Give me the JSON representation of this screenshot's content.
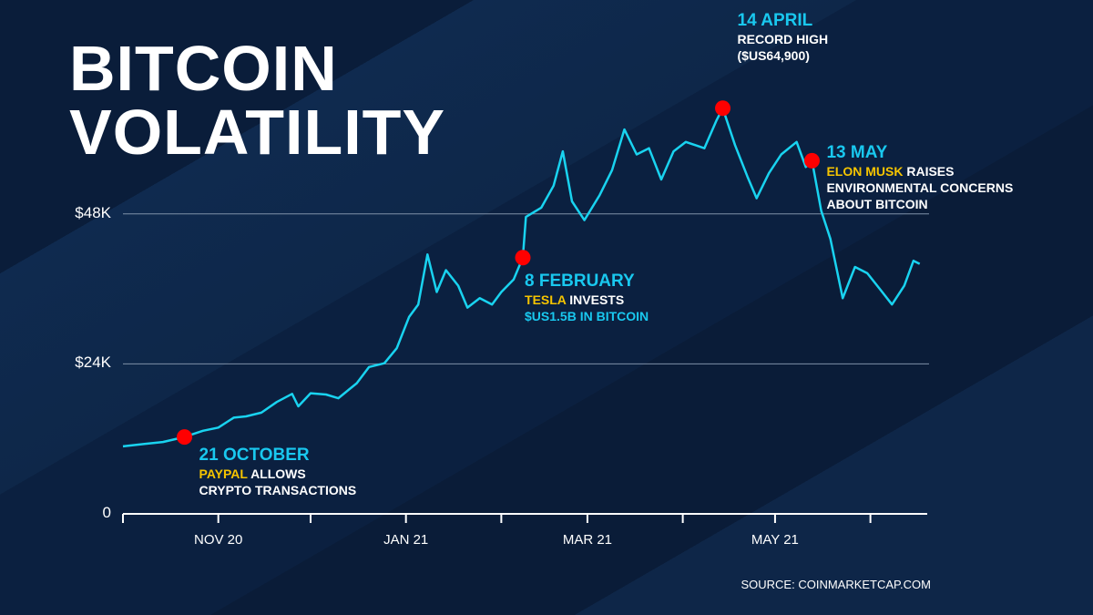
{
  "title": [
    "BITCOIN",
    "VOLATILITY"
  ],
  "source": "SOURCE: COINMARKETCAP.COM",
  "colors": {
    "background": "#0c2140",
    "line": "#19d3f0",
    "event_marker": "#ff0000",
    "highlight": "#f5c400",
    "date_text": "#19c8ef"
  },
  "chart_data": {
    "type": "line",
    "title": "BITCOIN VOLATILITY",
    "xlabel": "",
    "ylabel": "",
    "x_range": [
      "2020-10-01",
      "2021-06-20"
    ],
    "ylim": [
      0,
      66000
    ],
    "y_ticks": [
      {
        "value": 0,
        "label": "0"
      },
      {
        "value": 24000,
        "label": "$24K"
      },
      {
        "value": 48000,
        "label": "$48K"
      }
    ],
    "x_ticks": [
      "2020-10-01",
      "2020-11-01",
      "2020-12-01",
      "2021-01-01",
      "2021-02-01",
      "2021-03-01",
      "2021-04-01",
      "2021-05-01",
      "2021-06-01"
    ],
    "x_tick_labels": [
      {
        "date": "2020-11-01",
        "label": "NOV 20"
      },
      {
        "date": "2021-01-01",
        "label": "JAN 21"
      },
      {
        "date": "2021-03-01",
        "label": "MAR 21"
      },
      {
        "date": "2021-05-01",
        "label": "MAY 21"
      }
    ],
    "grid": "horizontal at $24K and $48K",
    "series": [
      {
        "x": [
          "2020-10-01",
          "2020-10-08",
          "2020-10-14",
          "2020-10-21",
          "2020-10-27",
          "2020-11-01",
          "2020-11-06",
          "2020-11-10",
          "2020-11-15",
          "2020-11-20",
          "2020-11-25",
          "2020-11-27",
          "2020-12-01",
          "2020-12-06",
          "2020-12-10",
          "2020-12-16",
          "2020-12-20",
          "2020-12-25",
          "2020-12-29",
          "2021-01-02",
          "2021-01-05",
          "2021-01-08",
          "2021-01-11",
          "2021-01-14",
          "2021-01-18",
          "2021-01-21",
          "2021-01-25",
          "2021-01-29",
          "2021-02-01",
          "2021-02-05",
          "2021-02-08",
          "2021-02-09",
          "2021-02-14",
          "2021-02-18",
          "2021-02-21",
          "2021-02-24",
          "2021-02-28",
          "2021-03-05",
          "2021-03-09",
          "2021-03-13",
          "2021-03-17",
          "2021-03-21",
          "2021-03-25",
          "2021-03-29",
          "2021-04-02",
          "2021-04-08",
          "2021-04-12",
          "2021-04-14",
          "2021-04-18",
          "2021-04-22",
          "2021-04-25",
          "2021-04-29",
          "2021-05-03",
          "2021-05-08",
          "2021-05-11",
          "2021-05-13",
          "2021-05-16",
          "2021-05-19",
          "2021-05-23",
          "2021-05-27",
          "2021-05-31",
          "2021-06-04",
          "2021-06-08",
          "2021-06-12",
          "2021-06-15",
          "2021-06-17"
        ],
        "y": [
          10800,
          11200,
          11500,
          12300,
          13300,
          13800,
          15400,
          15600,
          16200,
          17900,
          19200,
          17200,
          19300,
          19100,
          18500,
          20900,
          23500,
          24100,
          26500,
          31500,
          33500,
          41500,
          35500,
          39000,
          36500,
          33000,
          34500,
          33500,
          35500,
          37500,
          41000,
          47500,
          49000,
          52500,
          58000,
          50000,
          47000,
          51000,
          55000,
          61500,
          57500,
          58500,
          53500,
          58000,
          59500,
          58500,
          63000,
          64900,
          59000,
          54000,
          50500,
          54500,
          57500,
          59500,
          55500,
          56500,
          48500,
          44000,
          34500,
          39500,
          38500,
          36000,
          33500,
          36500,
          40500,
          40000
        ]
      }
    ],
    "annotations": [
      {
        "date": "2020-10-21",
        "value": 12300,
        "title": "21 OCTOBER",
        "lines": [
          [
            {
              "text": "PAYPAL",
              "highlight": true
            },
            {
              "text": " ALLOWS",
              "highlight": false
            }
          ],
          [
            {
              "text": "CRYPTO TRANSACTIONS",
              "highlight": false
            }
          ]
        ]
      },
      {
        "date": "2021-02-08",
        "value": 41000,
        "title": "8 FEBRUARY",
        "lines": [
          [
            {
              "text": "TESLA",
              "highlight": true
            },
            {
              "text": " INVESTS",
              "highlight": false
            }
          ],
          [
            {
              "text": "$US1.5B IN BITCOIN",
              "highlight": false,
              "cyan": true
            }
          ]
        ]
      },
      {
        "date": "2021-04-14",
        "value": 64900,
        "title": "14 APRIL",
        "lines": [
          [
            {
              "text": "RECORD HIGH",
              "highlight": false
            }
          ],
          [
            {
              "text": "($US64,900)",
              "highlight": false
            }
          ]
        ]
      },
      {
        "date": "2021-05-13",
        "value": 56500,
        "title": "13 MAY",
        "lines": [
          [
            {
              "text": "ELON MUSK",
              "highlight": true
            },
            {
              "text": " RAISES",
              "highlight": false
            }
          ],
          [
            {
              "text": "ENVIRONMENTAL CONCERNS",
              "highlight": false
            }
          ],
          [
            {
              "text": "ABOUT BITCOIN",
              "highlight": false
            }
          ]
        ]
      }
    ]
  }
}
